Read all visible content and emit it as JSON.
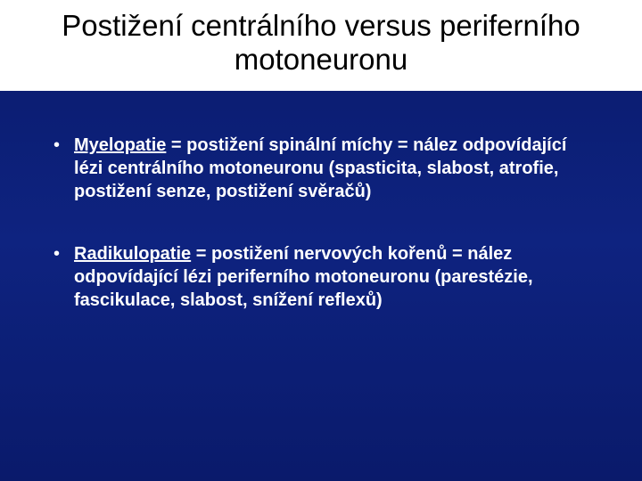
{
  "slide": {
    "background_color": "#0c1e78",
    "title_box_bg": "#ffffff",
    "title": "Postižení centrálního versus periferního motoneuronu",
    "title_color": "#000000",
    "title_fontsize": 33,
    "bullets": [
      {
        "term": "Myelopatie",
        "rest": " = postižení spinální míchy = nález odpovídající lézi centrálního motoneuronu (spasticita, slabost, atrofie, postižení senze, postižení svěračů)"
      },
      {
        "term": "Radikulopatie",
        "rest": " = postižení nervových kořenů = nález odpovídající lézi periferního motoneuronu (parestézie, fascikulace, slabost, snížení reflexů)"
      }
    ],
    "text_color": "#ffffff",
    "bullet_fontsize": 20,
    "bullet_marker": "•"
  }
}
